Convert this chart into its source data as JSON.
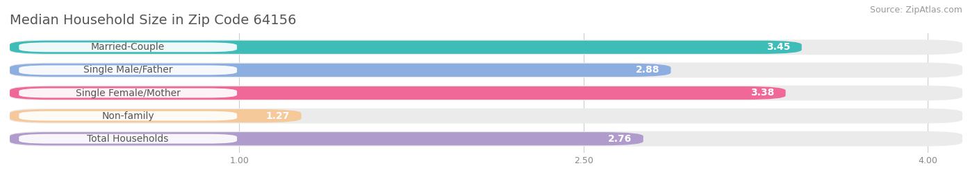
{
  "title": "Median Household Size in Zip Code 64156",
  "source": "Source: ZipAtlas.com",
  "categories": [
    "Married-Couple",
    "Single Male/Father",
    "Single Female/Mother",
    "Non-family",
    "Total Households"
  ],
  "values": [
    3.45,
    2.88,
    3.38,
    1.27,
    2.76
  ],
  "bar_colors": [
    "#3dbcb8",
    "#8daee0",
    "#f06898",
    "#f5c99a",
    "#b09ccc"
  ],
  "value_bg_colors": [
    "#3dbcb8",
    "#8daee0",
    "#f06898",
    "#f5c99a",
    "#b09ccc"
  ],
  "xlim": [
    0,
    4.15
  ],
  "xmin": 0,
  "xticks": [
    1.0,
    2.5,
    4.0
  ],
  "background_color": "#ffffff",
  "bar_bg_color": "#ebebeb",
  "row_bg_color": "#f5f5f5",
  "title_fontsize": 14,
  "source_fontsize": 9,
  "label_fontsize": 10,
  "value_fontsize": 10
}
